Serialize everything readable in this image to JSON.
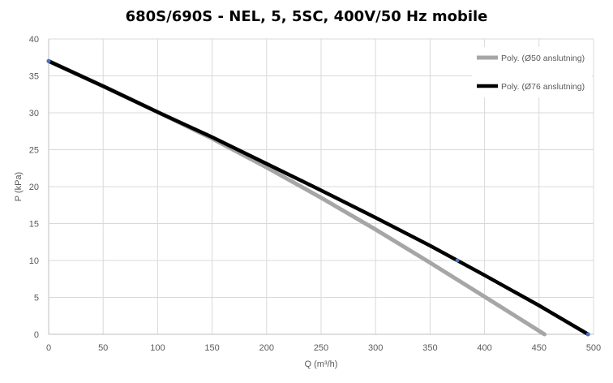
{
  "chart_data": {
    "type": "line",
    "title": "680S/690S - NEL, 5, 5SC, 400V/50 Hz mobile",
    "xlabel": "Q (m³/h)",
    "ylabel": "P (kPa)",
    "xlim": [
      0,
      500
    ],
    "ylim": [
      0,
      40
    ],
    "x_ticks": [
      0,
      50,
      100,
      150,
      200,
      250,
      300,
      350,
      400,
      450,
      500
    ],
    "y_ticks": [
      0,
      5,
      10,
      15,
      20,
      25,
      30,
      35,
      40
    ],
    "grid": true,
    "legend_position": "top-right",
    "series": [
      {
        "name": "Poly. (Ø50 anslutning)",
        "color": "#a6a6a6",
        "x": [
          0,
          50,
          100,
          150,
          200,
          250,
          300,
          350,
          400,
          455
        ],
        "y": [
          37,
          33.6,
          30.1,
          26.5,
          22.6,
          18.5,
          14.2,
          9.7,
          5.1,
          0
        ]
      },
      {
        "name": "Poly. (Ø76 anslutning)",
        "color": "#000000",
        "x": [
          0,
          50,
          100,
          150,
          200,
          250,
          300,
          350,
          400,
          450,
          495
        ],
        "y": [
          37,
          33.6,
          30.1,
          26.7,
          23.1,
          19.5,
          15.8,
          12,
          8,
          3.9,
          0
        ]
      }
    ],
    "points": [
      {
        "x": 0,
        "y": 37
      },
      {
        "x": 375,
        "y": 10
      },
      {
        "x": 495,
        "y": 0
      }
    ],
    "points_color": "#4472c4"
  }
}
